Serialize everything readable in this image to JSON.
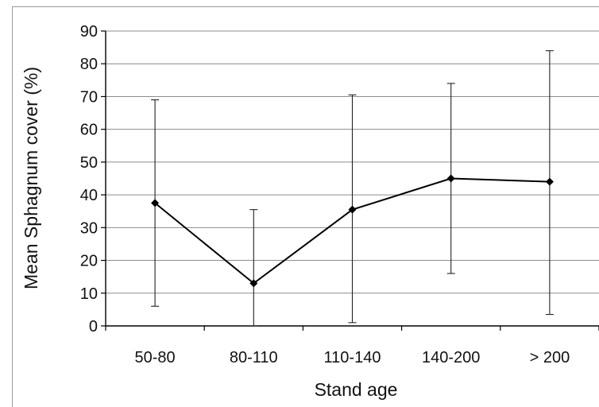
{
  "chart_data": {
    "type": "line",
    "title": "",
    "xlabel": "Stand age",
    "ylabel": "Mean Sphagnum cover (%)",
    "categories": [
      "50-80",
      "80-110",
      "110-140",
      "140-200",
      "> 200"
    ],
    "ylim": [
      0,
      90
    ],
    "yticks": [
      0,
      10,
      20,
      30,
      40,
      50,
      60,
      70,
      80,
      90
    ],
    "grid": true,
    "legend": "none",
    "series": [
      {
        "values": [
          37.5,
          13,
          35.5,
          45,
          44
        ],
        "error_low": [
          6,
          0,
          1,
          16,
          3.5
        ],
        "error_high": [
          69,
          35.5,
          70.5,
          74,
          84
        ],
        "color": "#000000",
        "marker": "diamond"
      }
    ]
  }
}
